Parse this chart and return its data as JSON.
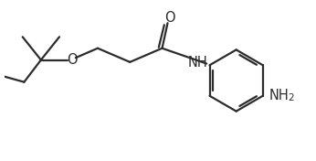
{
  "bg_color": "#ffffff",
  "line_color": "#2c2c2c",
  "line_width": 1.6,
  "font_size": 10.5,
  "font_size_sub": 7.5,
  "xlim": [
    0,
    10
  ],
  "ylim": [
    0,
    5.2
  ]
}
